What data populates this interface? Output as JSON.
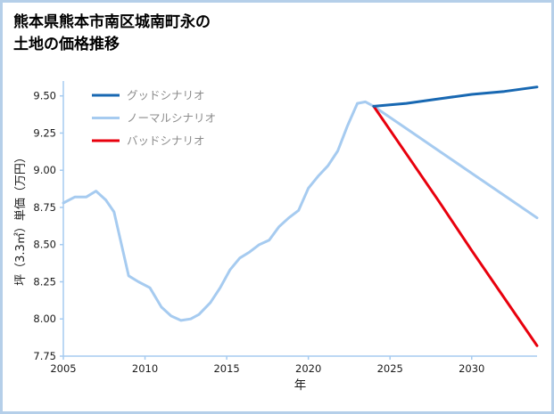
{
  "title": {
    "line1": "熊本県熊本市南区城南町永の",
    "line2": "土地の価格推移"
  },
  "colors": {
    "background": "#ffffff",
    "frame_border": "#b5cfe9",
    "axis": "#a6cbf0",
    "tick_label": "#1a1a1a",
    "legend_text": "#8c8c8c",
    "good_line": "#1868b2",
    "normal_line": "#a6cbf0",
    "bad_line": "#e8000d"
  },
  "chart_data": {
    "type": "line",
    "title": "熊本県熊本市南区城南町永の土地の価格推移",
    "xlabel": "年",
    "ylabel": "坪（3.3㎡）単価（万円）",
    "xlim": [
      2005,
      2034
    ],
    "ylim": [
      7.75,
      9.6
    ],
    "xticks": [
      2005,
      2010,
      2015,
      2020,
      2025,
      2030
    ],
    "yticks": [
      7.75,
      8.0,
      8.25,
      8.5,
      8.75,
      9.0,
      9.25,
      9.5
    ],
    "grid": false,
    "legend_position": "top-left",
    "series": [
      {
        "key": "good",
        "name": "グッドシナリオ",
        "color": "#1868b2",
        "width": 3,
        "x": [
          2024,
          2026,
          2028,
          2030,
          2032,
          2034
        ],
        "y": [
          9.43,
          9.45,
          9.48,
          9.51,
          9.53,
          9.56
        ]
      },
      {
        "key": "normal",
        "name": "ノーマルシナリオ",
        "color": "#a6cbf0",
        "width": 3,
        "x": [
          2005,
          2005.7,
          2006.4,
          2007,
          2007.6,
          2008.1,
          2009,
          2009.6,
          2010.3,
          2011,
          2011.6,
          2012.2,
          2012.8,
          2013.3,
          2014,
          2014.6,
          2015.2,
          2015.8,
          2016.4,
          2017,
          2017.6,
          2018.2,
          2018.8,
          2019.4,
          2020,
          2020.6,
          2021.2,
          2021.8,
          2022.4,
          2023,
          2023.5,
          2024,
          2026,
          2028,
          2030,
          2032,
          2034
        ],
        "y": [
          8.78,
          8.82,
          8.82,
          8.86,
          8.8,
          8.72,
          8.29,
          8.25,
          8.21,
          8.08,
          8.02,
          7.99,
          8.0,
          8.03,
          8.11,
          8.21,
          8.33,
          8.41,
          8.45,
          8.5,
          8.53,
          8.62,
          8.68,
          8.73,
          8.88,
          8.96,
          9.03,
          9.13,
          9.3,
          9.45,
          9.46,
          9.43,
          9.28,
          9.13,
          8.98,
          8.83,
          8.68
        ]
      },
      {
        "key": "bad",
        "name": "バッドシナリオ",
        "color": "#e8000d",
        "width": 3,
        "x": [
          2024,
          2026,
          2028,
          2030,
          2032,
          2034
        ],
        "y": [
          9.43,
          9.11,
          8.79,
          8.46,
          8.14,
          7.82
        ]
      }
    ]
  }
}
